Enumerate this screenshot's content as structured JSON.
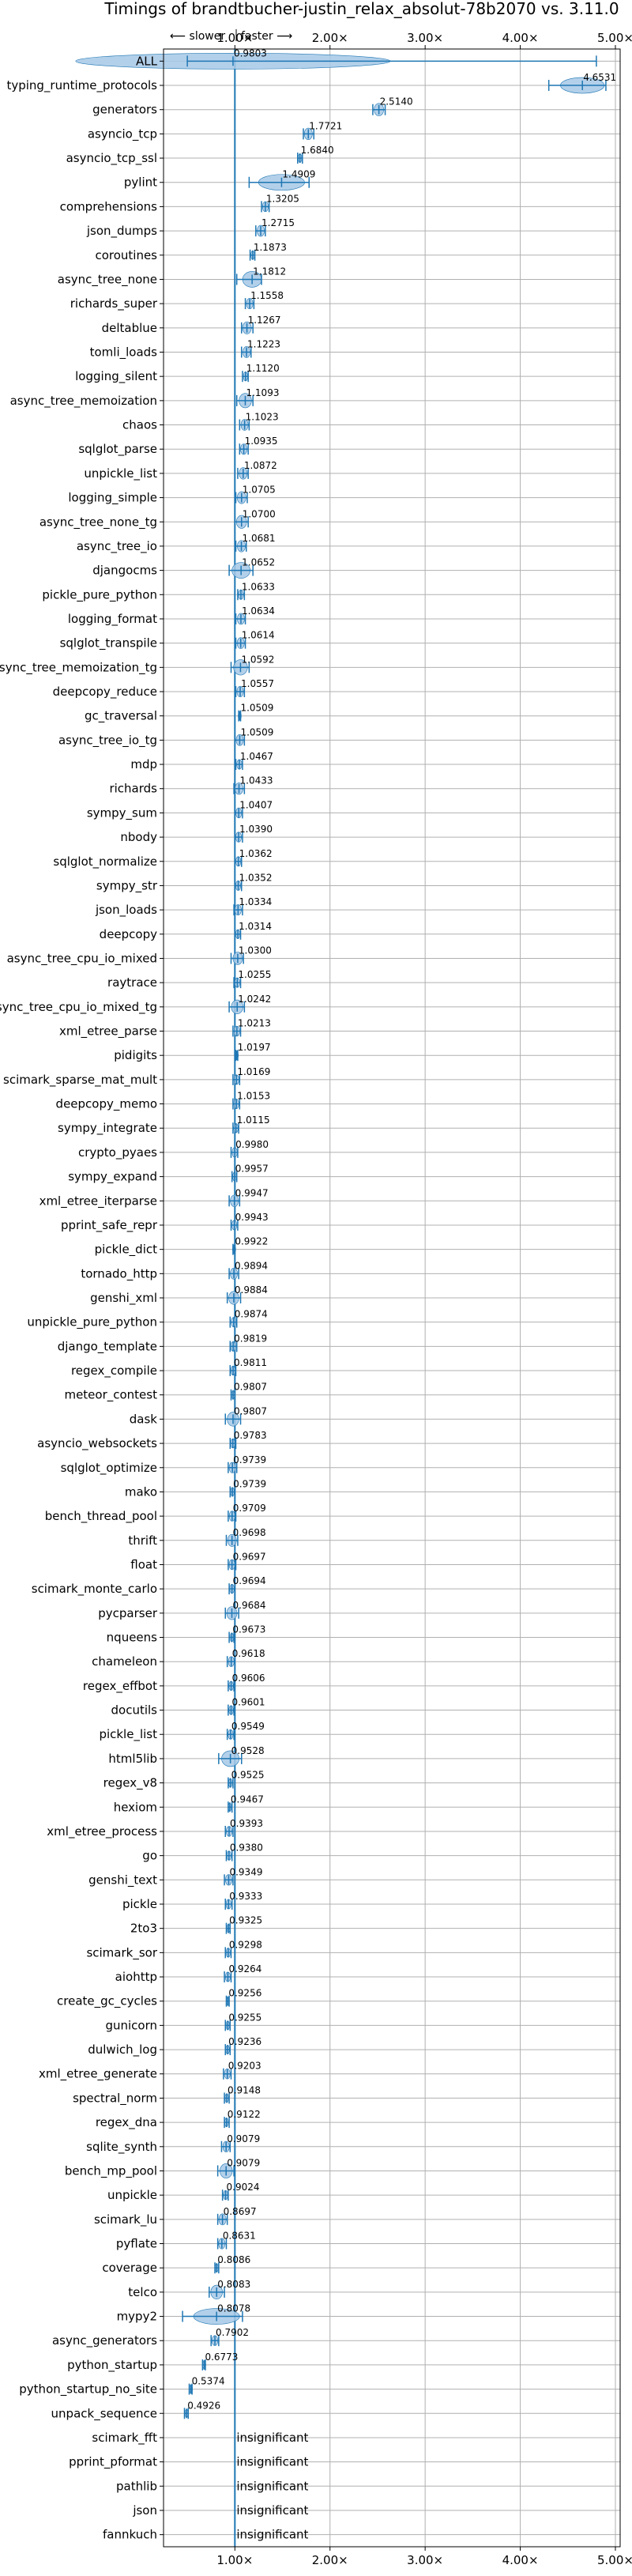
{
  "chart_data": {
    "type": "scatter",
    "title": "Timings of brandtbucher-justin_relax_absolut-78b2070 vs. 3.11.0",
    "direction_hint": {
      "slower": "⟵ slower",
      "faster": "faster ⟶"
    },
    "x_ticks": [
      "1.00×",
      "2.00×",
      "3.00×",
      "4.00×",
      "5.00×"
    ],
    "x_tick_values": [
      1,
      2,
      3,
      4,
      5
    ],
    "xlim": [
      0.25,
      5.05
    ],
    "reference_line": 1.0,
    "grid": true,
    "colors": {
      "main": "#1f77b4",
      "violin": "#a6c8e6",
      "grid": "#b0b0b0"
    },
    "rows": [
      {
        "name": "ALL",
        "value": 0.9803,
        "label": "0.9803",
        "lo": 0.5,
        "hi": 4.8
      },
      {
        "name": "typing_runtime_protocols",
        "value": 4.6531,
        "label": "4.6531",
        "lo": 4.3,
        "hi": 4.9
      },
      {
        "name": "generators",
        "value": 2.514,
        "label": "2.5140",
        "lo": 2.45,
        "hi": 2.58
      },
      {
        "name": "asyncio_tcp",
        "value": 1.7721,
        "label": "1.7721",
        "lo": 1.72,
        "hi": 1.83
      },
      {
        "name": "asyncio_tcp_ssl",
        "value": 1.684,
        "label": "1.6840",
        "lo": 1.66,
        "hi": 1.71
      },
      {
        "name": "pylint",
        "value": 1.4909,
        "label": "1.4909",
        "lo": 1.15,
        "hi": 1.78
      },
      {
        "name": "comprehensions",
        "value": 1.3205,
        "label": "1.3205",
        "lo": 1.28,
        "hi": 1.36
      },
      {
        "name": "json_dumps",
        "value": 1.2715,
        "label": "1.2715",
        "lo": 1.22,
        "hi": 1.32
      },
      {
        "name": "coroutines",
        "value": 1.1873,
        "label": "1.1873",
        "lo": 1.16,
        "hi": 1.21
      },
      {
        "name": "async_tree_none",
        "value": 1.1812,
        "label": "1.1812",
        "lo": 1.02,
        "hi": 1.28
      },
      {
        "name": "richards_super",
        "value": 1.1558,
        "label": "1.1558",
        "lo": 1.11,
        "hi": 1.2
      },
      {
        "name": "deltablue",
        "value": 1.1267,
        "label": "1.1267",
        "lo": 1.07,
        "hi": 1.19
      },
      {
        "name": "tomli_loads",
        "value": 1.1223,
        "label": "1.1223",
        "lo": 1.07,
        "hi": 1.17
      },
      {
        "name": "logging_silent",
        "value": 1.112,
        "label": "1.1120",
        "lo": 1.08,
        "hi": 1.14
      },
      {
        "name": "async_tree_memoization",
        "value": 1.1093,
        "label": "1.1093",
        "lo": 1.02,
        "hi": 1.19
      },
      {
        "name": "chaos",
        "value": 1.1023,
        "label": "1.1023",
        "lo": 1.05,
        "hi": 1.15
      },
      {
        "name": "sqlglot_parse",
        "value": 1.0935,
        "label": "1.0935",
        "lo": 1.05,
        "hi": 1.14
      },
      {
        "name": "unpickle_list",
        "value": 1.0872,
        "label": "1.0872",
        "lo": 1.03,
        "hi": 1.14
      },
      {
        "name": "logging_simple",
        "value": 1.0705,
        "label": "1.0705",
        "lo": 1.01,
        "hi": 1.13
      },
      {
        "name": "async_tree_none_tg",
        "value": 1.07,
        "label": "1.0700",
        "lo": 1.0,
        "hi": 1.14
      },
      {
        "name": "async_tree_io",
        "value": 1.0681,
        "label": "1.0681",
        "lo": 1.01,
        "hi": 1.12
      },
      {
        "name": "djangocms",
        "value": 1.0652,
        "label": "1.0652",
        "lo": 0.94,
        "hi": 1.19
      },
      {
        "name": "pickle_pure_python",
        "value": 1.0633,
        "label": "1.0633",
        "lo": 1.03,
        "hi": 1.1
      },
      {
        "name": "logging_format",
        "value": 1.0634,
        "label": "1.0634",
        "lo": 1.01,
        "hi": 1.11
      },
      {
        "name": "sqlglot_transpile",
        "value": 1.0614,
        "label": "1.0614",
        "lo": 1.01,
        "hi": 1.11
      },
      {
        "name": "async_tree_memoization_tg",
        "value": 1.0592,
        "label": "1.0592",
        "lo": 0.96,
        "hi": 1.15
      },
      {
        "name": "deepcopy_reduce",
        "value": 1.0557,
        "label": "1.0557",
        "lo": 1.01,
        "hi": 1.1
      },
      {
        "name": "gc_traversal",
        "value": 1.0509,
        "label": "1.0509",
        "lo": 1.04,
        "hi": 1.06
      },
      {
        "name": "async_tree_io_tg",
        "value": 1.0509,
        "label": "1.0509",
        "lo": 1.0,
        "hi": 1.1
      },
      {
        "name": "mdp",
        "value": 1.0467,
        "label": "1.0467",
        "lo": 1.01,
        "hi": 1.08
      },
      {
        "name": "richards",
        "value": 1.0433,
        "label": "1.0433",
        "lo": 0.99,
        "hi": 1.1
      },
      {
        "name": "sympy_sum",
        "value": 1.0407,
        "label": "1.0407",
        "lo": 1.0,
        "hi": 1.08
      },
      {
        "name": "nbody",
        "value": 1.039,
        "label": "1.0390",
        "lo": 1.0,
        "hi": 1.08
      },
      {
        "name": "sqlglot_normalize",
        "value": 1.0362,
        "label": "1.0362",
        "lo": 1.0,
        "hi": 1.07
      },
      {
        "name": "sympy_str",
        "value": 1.0352,
        "label": "1.0352",
        "lo": 1.0,
        "hi": 1.07
      },
      {
        "name": "json_loads",
        "value": 1.0334,
        "label": "1.0334",
        "lo": 0.99,
        "hi": 1.08
      },
      {
        "name": "deepcopy",
        "value": 1.0314,
        "label": "1.0314",
        "lo": 1.0,
        "hi": 1.06
      },
      {
        "name": "async_tree_cpu_io_mixed",
        "value": 1.03,
        "label": "1.0300",
        "lo": 0.96,
        "hi": 1.09
      },
      {
        "name": "raytrace",
        "value": 1.0255,
        "label": "1.0255",
        "lo": 0.99,
        "hi": 1.06
      },
      {
        "name": "async_tree_cpu_io_mixed_tg",
        "value": 1.0242,
        "label": "1.0242",
        "lo": 0.94,
        "hi": 1.1
      },
      {
        "name": "xml_etree_parse",
        "value": 1.0213,
        "label": "1.0213",
        "lo": 0.98,
        "hi": 1.06
      },
      {
        "name": "pidigits",
        "value": 1.0197,
        "label": "1.0197",
        "lo": 1.01,
        "hi": 1.03
      },
      {
        "name": "scimark_sparse_mat_mult",
        "value": 1.0169,
        "label": "1.0169",
        "lo": 0.98,
        "hi": 1.05
      },
      {
        "name": "deepcopy_memo",
        "value": 1.0153,
        "label": "1.0153",
        "lo": 0.98,
        "hi": 1.05
      },
      {
        "name": "sympy_integrate",
        "value": 1.0115,
        "label": "1.0115",
        "lo": 0.98,
        "hi": 1.04
      },
      {
        "name": "crypto_pyaes",
        "value": 0.998,
        "label": "0.9980",
        "lo": 0.96,
        "hi": 1.03
      },
      {
        "name": "sympy_expand",
        "value": 0.9957,
        "label": "0.9957",
        "lo": 0.97,
        "hi": 1.02
      },
      {
        "name": "xml_etree_iterparse",
        "value": 0.9947,
        "label": "0.9947",
        "lo": 0.94,
        "hi": 1.05
      },
      {
        "name": "pprint_safe_repr",
        "value": 0.9943,
        "label": "0.9943",
        "lo": 0.96,
        "hi": 1.03
      },
      {
        "name": "pickle_dict",
        "value": 0.9922,
        "label": "0.9922",
        "lo": 0.98,
        "hi": 1.0
      },
      {
        "name": "tornado_http",
        "value": 0.9894,
        "label": "0.9894",
        "lo": 0.94,
        "hi": 1.04
      },
      {
        "name": "genshi_xml",
        "value": 0.9884,
        "label": "0.9884",
        "lo": 0.92,
        "hi": 1.06
      },
      {
        "name": "unpickle_pure_python",
        "value": 0.9874,
        "label": "0.9874",
        "lo": 0.95,
        "hi": 1.02
      },
      {
        "name": "django_template",
        "value": 0.9819,
        "label": "0.9819",
        "lo": 0.95,
        "hi": 1.02
      },
      {
        "name": "regex_compile",
        "value": 0.9811,
        "label": "0.9811",
        "lo": 0.95,
        "hi": 1.01
      },
      {
        "name": "meteor_contest",
        "value": 0.9807,
        "label": "0.9807",
        "lo": 0.96,
        "hi": 1.0
      },
      {
        "name": "dask",
        "value": 0.9807,
        "label": "0.9807",
        "lo": 0.9,
        "hi": 1.06
      },
      {
        "name": "asyncio_websockets",
        "value": 0.9783,
        "label": "0.9783",
        "lo": 0.95,
        "hi": 1.01
      },
      {
        "name": "sqlglot_optimize",
        "value": 0.9739,
        "label": "0.9739",
        "lo": 0.93,
        "hi": 1.02
      },
      {
        "name": "mako",
        "value": 0.9739,
        "label": "0.9739",
        "lo": 0.95,
        "hi": 1.0
      },
      {
        "name": "bench_thread_pool",
        "value": 0.9709,
        "label": "0.9709",
        "lo": 0.93,
        "hi": 1.01
      },
      {
        "name": "thrift",
        "value": 0.9698,
        "label": "0.9698",
        "lo": 0.91,
        "hi": 1.03
      },
      {
        "name": "float",
        "value": 0.9697,
        "label": "0.9697",
        "lo": 0.93,
        "hi": 1.01
      },
      {
        "name": "scimark_monte_carlo",
        "value": 0.9694,
        "label": "0.9694",
        "lo": 0.94,
        "hi": 1.0
      },
      {
        "name": "pycparser",
        "value": 0.9684,
        "label": "0.9684",
        "lo": 0.9,
        "hi": 1.04
      },
      {
        "name": "nqueens",
        "value": 0.9673,
        "label": "0.9673",
        "lo": 0.94,
        "hi": 0.99
      },
      {
        "name": "chameleon",
        "value": 0.9618,
        "label": "0.9618",
        "lo": 0.92,
        "hi": 1.0
      },
      {
        "name": "regex_effbot",
        "value": 0.9606,
        "label": "0.9606",
        "lo": 0.93,
        "hi": 0.99
      },
      {
        "name": "docutils",
        "value": 0.9601,
        "label": "0.9601",
        "lo": 0.93,
        "hi": 0.99
      },
      {
        "name": "pickle_list",
        "value": 0.9549,
        "label": "0.9549",
        "lo": 0.92,
        "hi": 0.99
      },
      {
        "name": "html5lib",
        "value": 0.9528,
        "label": "0.9528",
        "lo": 0.83,
        "hi": 1.07
      },
      {
        "name": "regex_v8",
        "value": 0.9525,
        "label": "0.9525",
        "lo": 0.93,
        "hi": 0.98
      },
      {
        "name": "hexiom",
        "value": 0.9467,
        "label": "0.9467",
        "lo": 0.93,
        "hi": 0.97
      },
      {
        "name": "xml_etree_process",
        "value": 0.9393,
        "label": "0.9393",
        "lo": 0.9,
        "hi": 0.98
      },
      {
        "name": "go",
        "value": 0.938,
        "label": "0.9380",
        "lo": 0.91,
        "hi": 0.97
      },
      {
        "name": "genshi_text",
        "value": 0.9349,
        "label": "0.9349",
        "lo": 0.89,
        "hi": 0.98
      },
      {
        "name": "pickle",
        "value": 0.9333,
        "label": "0.9333",
        "lo": 0.9,
        "hi": 0.97
      },
      {
        "name": "2to3",
        "value": 0.9325,
        "label": "0.9325",
        "lo": 0.91,
        "hi": 0.95
      },
      {
        "name": "scimark_sor",
        "value": 0.9298,
        "label": "0.9298",
        "lo": 0.9,
        "hi": 0.96
      },
      {
        "name": "aiohttp",
        "value": 0.9264,
        "label": "0.9264",
        "lo": 0.89,
        "hi": 0.96
      },
      {
        "name": "create_gc_cycles",
        "value": 0.9256,
        "label": "0.9256",
        "lo": 0.91,
        "hi": 0.94
      },
      {
        "name": "gunicorn",
        "value": 0.9255,
        "label": "0.9255",
        "lo": 0.9,
        "hi": 0.95
      },
      {
        "name": "dulwich_log",
        "value": 0.9236,
        "label": "0.9236",
        "lo": 0.9,
        "hi": 0.95
      },
      {
        "name": "xml_etree_generate",
        "value": 0.9203,
        "label": "0.9203",
        "lo": 0.88,
        "hi": 0.96
      },
      {
        "name": "spectral_norm",
        "value": 0.9148,
        "label": "0.9148",
        "lo": 0.89,
        "hi": 0.94
      },
      {
        "name": "regex_dna",
        "value": 0.9122,
        "label": "0.9122",
        "lo": 0.89,
        "hi": 0.94
      },
      {
        "name": "sqlite_synth",
        "value": 0.9079,
        "label": "0.9079",
        "lo": 0.86,
        "hi": 0.95
      },
      {
        "name": "bench_mp_pool",
        "value": 0.9079,
        "label": "0.9079",
        "lo": 0.82,
        "hi": 0.99
      },
      {
        "name": "unpickle",
        "value": 0.9024,
        "label": "0.9024",
        "lo": 0.87,
        "hi": 0.93
      },
      {
        "name": "scimark_lu",
        "value": 0.8697,
        "label": "0.8697",
        "lo": 0.82,
        "hi": 0.92
      },
      {
        "name": "pyflate",
        "value": 0.8631,
        "label": "0.8631",
        "lo": 0.82,
        "hi": 0.91
      },
      {
        "name": "coverage",
        "value": 0.8086,
        "label": "0.8086",
        "lo": 0.79,
        "hi": 0.83
      },
      {
        "name": "telco",
        "value": 0.8083,
        "label": "0.8083",
        "lo": 0.73,
        "hi": 0.89
      },
      {
        "name": "mypy2",
        "value": 0.8078,
        "label": "0.8078",
        "lo": 0.45,
        "hi": 1.08
      },
      {
        "name": "async_generators",
        "value": 0.7902,
        "label": "0.7902",
        "lo": 0.75,
        "hi": 0.83
      },
      {
        "name": "python_startup",
        "value": 0.6773,
        "label": "0.6773",
        "lo": 0.66,
        "hi": 0.69
      },
      {
        "name": "python_startup_no_site",
        "value": 0.5374,
        "label": "0.5374",
        "lo": 0.52,
        "hi": 0.55
      },
      {
        "name": "unpack_sequence",
        "value": 0.4926,
        "label": "0.4926",
        "lo": 0.47,
        "hi": 0.51
      },
      {
        "name": "scimark_fft",
        "value": null,
        "label": "insignificant",
        "lo": null,
        "hi": null
      },
      {
        "name": "pprint_pformat",
        "value": null,
        "label": "insignificant",
        "lo": null,
        "hi": null
      },
      {
        "name": "pathlib",
        "value": null,
        "label": "insignificant",
        "lo": null,
        "hi": null
      },
      {
        "name": "json",
        "value": null,
        "label": "insignificant",
        "lo": null,
        "hi": null
      },
      {
        "name": "fannkuch",
        "value": null,
        "label": "insignificant",
        "lo": null,
        "hi": null
      }
    ]
  }
}
